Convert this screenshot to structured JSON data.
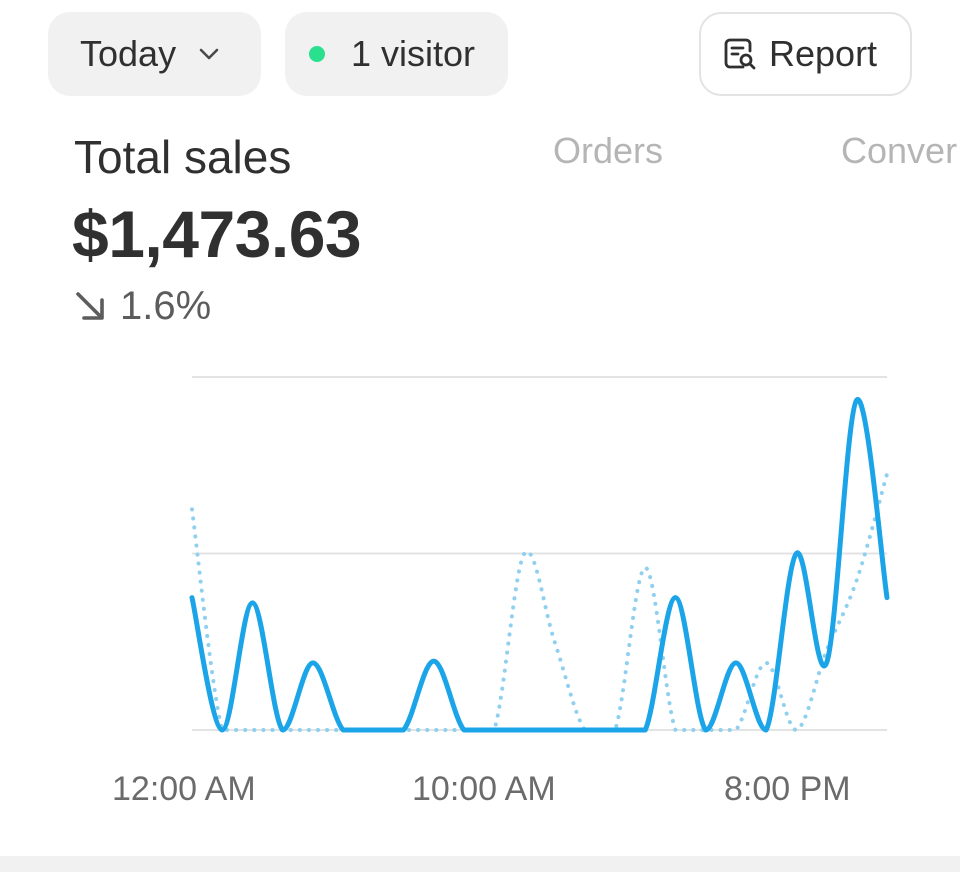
{
  "toolbar": {
    "date_range_label": "Today",
    "visitors_label": "1 visitor",
    "report_label": "Report",
    "colors": {
      "pill_bg": "#f1f1f1",
      "live_dot": "#29e08f"
    },
    "icons": {
      "date_chevron": "chevron-down-icon",
      "live": "live-dot-icon",
      "report": "report-search-icon"
    }
  },
  "metrics": {
    "active": {
      "title": "Total sales",
      "value": "$1,473.63",
      "change": "1.6%",
      "change_direction": "down"
    },
    "tabs": [
      {
        "label": "Orders"
      },
      {
        "label": "Conver"
      }
    ]
  },
  "chart_data": {
    "type": "line",
    "x_tick_labels": [
      "12:00 AM",
      "10:00 AM",
      "8:00 PM"
    ],
    "x_tick_hours": [
      0,
      10,
      20
    ],
    "x": [
      0,
      1,
      2,
      3,
      4,
      5,
      6,
      7,
      8,
      9,
      10,
      11,
      12,
      13,
      14,
      15,
      16,
      17,
      18,
      19,
      20,
      21,
      22,
      23
    ],
    "ylim": [
      0,
      2
    ],
    "grid": true,
    "series": [
      {
        "style": "solid",
        "color": "#1ba5e8",
        "values": [
          0.75,
          0,
          0.72,
          0,
          0.38,
          0,
          0,
          0,
          0.39,
          0,
          0,
          0,
          0,
          0,
          0,
          0,
          0.75,
          0,
          0.38,
          0,
          1.0,
          0.38,
          1.87,
          0.75
        ]
      },
      {
        "style": "dotted",
        "color": "#8fd0ef",
        "values": [
          1.25,
          0,
          0,
          0,
          0,
          0,
          0,
          0,
          0,
          0,
          0,
          1.0,
          0.5,
          0,
          0,
          0.92,
          0,
          0,
          0,
          0.38,
          0,
          0.45,
          0.85,
          1.45
        ]
      }
    ]
  }
}
